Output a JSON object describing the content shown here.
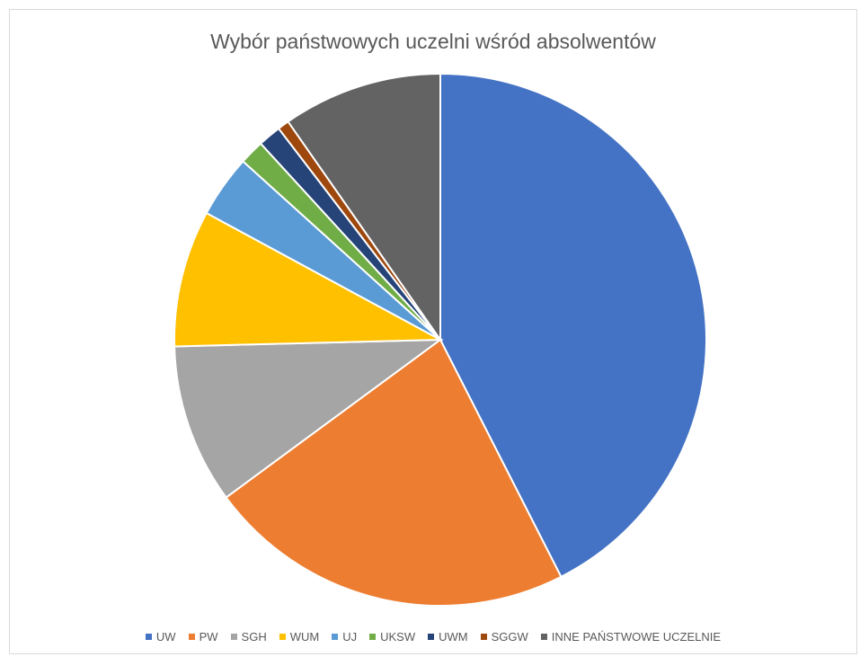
{
  "chart_data": {
    "type": "pie",
    "title": "Wybór państwowych uczelni wśród absolwentów",
    "legend_position": "bottom",
    "slices": [
      {
        "label": "UW",
        "value": 42.5,
        "color": "#4472C4"
      },
      {
        "label": "PW",
        "value": 22.4,
        "color": "#ED7D31"
      },
      {
        "label": "SGH",
        "value": 9.7,
        "color": "#A5A5A5"
      },
      {
        "label": "WUM",
        "value": 8.3,
        "color": "#FFC000"
      },
      {
        "label": "UJ",
        "value": 3.8,
        "color": "#5B9BD5"
      },
      {
        "label": "UKSW",
        "value": 1.5,
        "color": "#70AD47"
      },
      {
        "label": "UWM",
        "value": 1.4,
        "color": "#264478"
      },
      {
        "label": "SGGW",
        "value": 0.7,
        "color": "#9E480E"
      },
      {
        "label": "INNE PAŃSTWOWE UCZELNIE",
        "value": 9.7,
        "color": "#636363"
      }
    ]
  }
}
